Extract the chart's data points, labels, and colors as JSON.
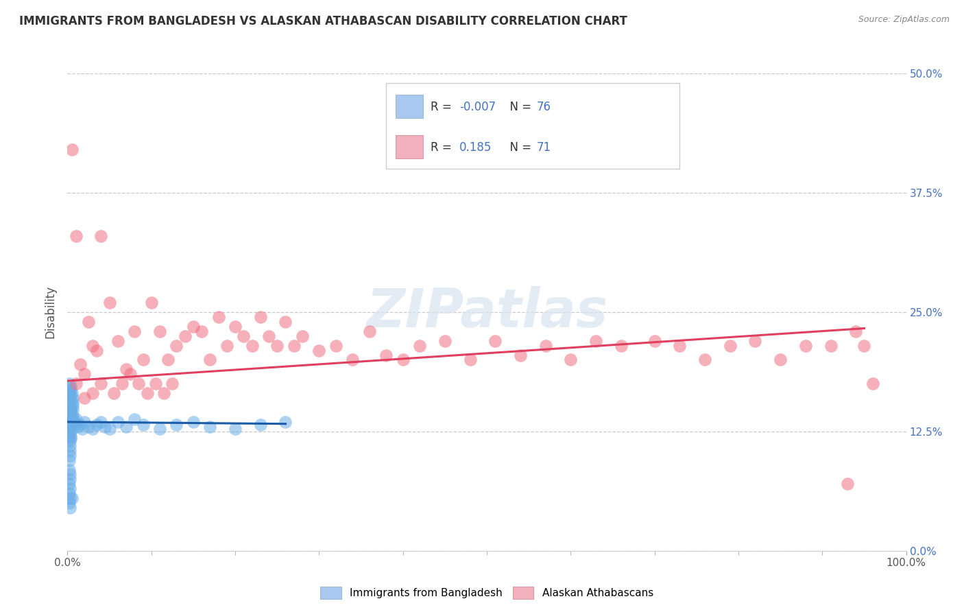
{
  "title": "IMMIGRANTS FROM BANGLADESH VS ALASKAN ATHABASCAN DISABILITY CORRELATION CHART",
  "source": "Source: ZipAtlas.com",
  "ylabel": "Disability",
  "xlim": [
    0.0,
    1.0
  ],
  "ylim": [
    0.0,
    0.5
  ],
  "ytick_values": [
    0.0,
    0.125,
    0.25,
    0.375,
    0.5
  ],
  "ytick_labels": [
    "0.0%",
    "12.5%",
    "25.0%",
    "37.5%",
    "50.0%"
  ],
  "xtick_values": [
    0.0,
    1.0
  ],
  "xtick_labels": [
    "0.0%",
    "100.0%"
  ],
  "blue_R": "-0.007",
  "blue_N": "76",
  "pink_R": "0.185",
  "pink_N": "71",
  "blue_label": "Immigrants from Bangladesh",
  "pink_label": "Alaskan Athabascans",
  "blue_scatter_x": [
    0.002,
    0.003,
    0.002,
    0.003,
    0.002,
    0.003,
    0.002,
    0.003,
    0.002,
    0.003,
    0.002,
    0.003,
    0.002,
    0.003,
    0.002,
    0.003,
    0.002,
    0.003,
    0.002,
    0.003,
    0.004,
    0.004,
    0.004,
    0.004,
    0.004,
    0.004,
    0.004,
    0.004,
    0.004,
    0.004,
    0.006,
    0.006,
    0.006,
    0.006,
    0.006,
    0.007,
    0.008,
    0.009,
    0.01,
    0.012,
    0.015,
    0.018,
    0.02,
    0.025,
    0.03,
    0.035,
    0.04,
    0.045,
    0.05,
    0.06,
    0.07,
    0.08,
    0.09,
    0.11,
    0.13,
    0.15,
    0.17,
    0.2,
    0.23,
    0.26,
    0.002,
    0.002,
    0.003,
    0.003,
    0.002,
    0.003,
    0.002,
    0.003,
    0.002,
    0.003,
    0.004,
    0.004,
    0.004,
    0.004,
    0.005,
    0.005
  ],
  "blue_scatter_y": [
    0.135,
    0.14,
    0.145,
    0.15,
    0.155,
    0.16,
    0.13,
    0.125,
    0.12,
    0.115,
    0.165,
    0.11,
    0.17,
    0.105,
    0.175,
    0.1,
    0.135,
    0.13,
    0.14,
    0.128,
    0.132,
    0.138,
    0.142,
    0.148,
    0.125,
    0.13,
    0.135,
    0.12,
    0.145,
    0.118,
    0.16,
    0.155,
    0.152,
    0.148,
    0.142,
    0.138,
    0.135,
    0.132,
    0.138,
    0.13,
    0.132,
    0.128,
    0.135,
    0.13,
    0.128,
    0.132,
    0.135,
    0.13,
    0.128,
    0.135,
    0.13,
    0.138,
    0.132,
    0.128,
    0.132,
    0.135,
    0.13,
    0.128,
    0.132,
    0.135,
    0.095,
    0.085,
    0.08,
    0.075,
    0.07,
    0.065,
    0.06,
    0.055,
    0.05,
    0.045,
    0.172,
    0.168,
    0.162,
    0.158,
    0.165,
    0.055
  ],
  "pink_scatter_x": [
    0.005,
    0.01,
    0.015,
    0.02,
    0.025,
    0.03,
    0.035,
    0.04,
    0.05,
    0.06,
    0.07,
    0.08,
    0.09,
    0.1,
    0.11,
    0.12,
    0.13,
    0.14,
    0.15,
    0.16,
    0.17,
    0.18,
    0.19,
    0.2,
    0.21,
    0.22,
    0.23,
    0.24,
    0.25,
    0.26,
    0.27,
    0.28,
    0.3,
    0.32,
    0.34,
    0.36,
    0.38,
    0.4,
    0.42,
    0.45,
    0.48,
    0.51,
    0.54,
    0.57,
    0.6,
    0.63,
    0.66,
    0.7,
    0.73,
    0.76,
    0.79,
    0.82,
    0.85,
    0.88,
    0.91,
    0.94,
    0.01,
    0.02,
    0.03,
    0.04,
    0.055,
    0.065,
    0.075,
    0.085,
    0.095,
    0.105,
    0.115,
    0.125,
    0.96,
    0.95,
    0.93
  ],
  "pink_scatter_y": [
    0.42,
    0.33,
    0.195,
    0.16,
    0.24,
    0.215,
    0.21,
    0.33,
    0.26,
    0.22,
    0.19,
    0.23,
    0.2,
    0.26,
    0.23,
    0.2,
    0.215,
    0.225,
    0.235,
    0.23,
    0.2,
    0.245,
    0.215,
    0.235,
    0.225,
    0.215,
    0.245,
    0.225,
    0.215,
    0.24,
    0.215,
    0.225,
    0.21,
    0.215,
    0.2,
    0.23,
    0.205,
    0.2,
    0.215,
    0.22,
    0.2,
    0.22,
    0.205,
    0.215,
    0.2,
    0.22,
    0.215,
    0.22,
    0.215,
    0.2,
    0.215,
    0.22,
    0.2,
    0.215,
    0.215,
    0.23,
    0.175,
    0.185,
    0.165,
    0.175,
    0.165,
    0.175,
    0.185,
    0.175,
    0.165,
    0.175,
    0.165,
    0.175,
    0.175,
    0.215,
    0.07
  ],
  "blue_line_x": [
    0.0,
    0.26
  ],
  "blue_line_y": [
    0.135,
    0.133
  ],
  "pink_line_x": [
    0.0,
    0.95
  ],
  "pink_line_y": [
    0.178,
    0.233
  ],
  "background_color": "#ffffff",
  "grid_color": "#c8c8c8",
  "title_color": "#333333",
  "source_color": "#888888",
  "blue_color": "#6aaee8",
  "pink_color": "#f07080",
  "blue_line_color": "#1a5ca8",
  "pink_line_color": "#e04060",
  "watermark_color": "#d8e4f0",
  "axis_label_color": "#4472c4",
  "legend_swatch_blue": "#a8c8f0",
  "legend_swatch_pink": "#f0b0bc"
}
